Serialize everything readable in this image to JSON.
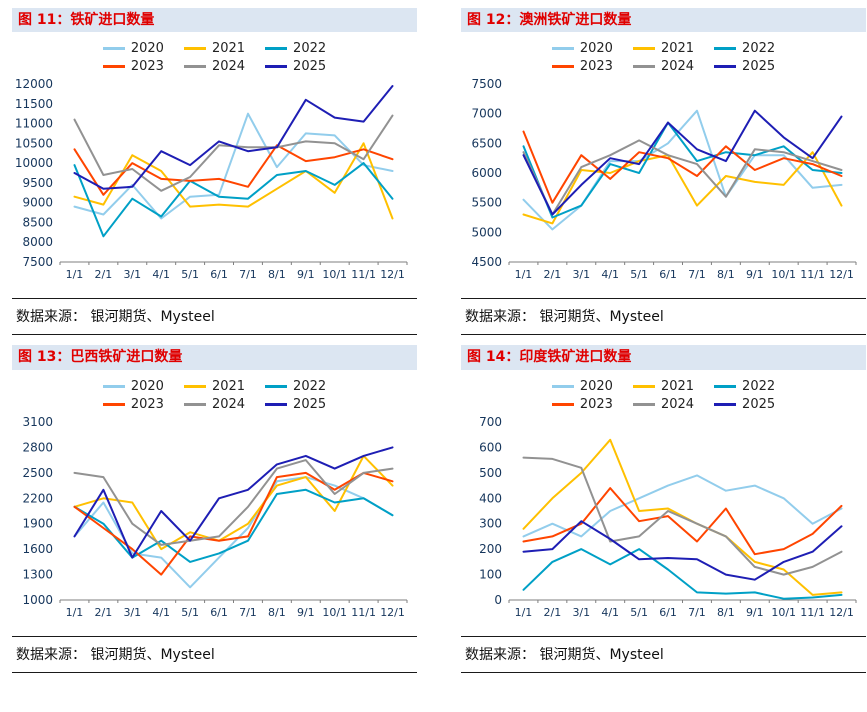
{
  "chart_data": [
    {
      "type": "line",
      "title": "图 11：铁矿进口数量",
      "source": "数据来源： 银河期货、Mysteel",
      "x": [
        "1/1",
        "2/1",
        "3/1",
        "4/1",
        "5/1",
        "6/1",
        "7/1",
        "8/1",
        "9/1",
        "10/1",
        "11/1",
        "12/1"
      ],
      "ylim": [
        7500,
        12000
      ],
      "ytick_step": 500,
      "grid": false,
      "legend_position": "top",
      "series": [
        {
          "name": "2020",
          "color": "#92CDEC",
          "values": [
            8900,
            8700,
            9450,
            8600,
            9150,
            9200,
            11250,
            9900,
            10750,
            10700,
            9950,
            9800
          ]
        },
        {
          "name": "2021",
          "color": "#FFC000",
          "values": [
            9150,
            8950,
            10200,
            9800,
            8900,
            8950,
            8900,
            9350,
            9800,
            9250,
            10500,
            8600
          ]
        },
        {
          "name": "2022",
          "color": "#00A0C6",
          "values": [
            9950,
            8150,
            9100,
            8650,
            9550,
            9150,
            9100,
            9700,
            9800,
            9450,
            10000,
            9100
          ]
        },
        {
          "name": "2023",
          "color": "#FF4500",
          "values": [
            10350,
            9200,
            10000,
            9600,
            9550,
            9600,
            9400,
            10450,
            10050,
            10150,
            10350,
            10100
          ]
        },
        {
          "name": "2024",
          "color": "#929292",
          "values": [
            11100,
            9700,
            9850,
            9300,
            9650,
            10450,
            10400,
            10400,
            10550,
            10500,
            10100,
            11200
          ]
        },
        {
          "name": "2025",
          "color": "#1E1EB4",
          "values": [
            9750,
            9350,
            9400,
            10300,
            9950,
            10550,
            10300,
            10400,
            11600,
            11150,
            11050,
            11950
          ]
        }
      ]
    },
    {
      "type": "line",
      "title": "图 12：澳洲铁矿进口数量",
      "source": "数据来源： 银河期货、Mysteel",
      "x": [
        "1/1",
        "2/1",
        "3/1",
        "4/1",
        "5/1",
        "6/1",
        "7/1",
        "8/1",
        "9/1",
        "10/1",
        "11/1",
        "12/1"
      ],
      "ylim": [
        4500,
        7500
      ],
      "ytick_step": 500,
      "grid": false,
      "legend_position": "top",
      "series": [
        {
          "name": "2020",
          "color": "#92CDEC",
          "values": [
            5550,
            5050,
            5450,
            6200,
            6200,
            6500,
            7050,
            5600,
            6300,
            6300,
            5750,
            5800
          ]
        },
        {
          "name": "2021",
          "color": "#FFC000",
          "values": [
            5300,
            5150,
            6050,
            6000,
            6200,
            6300,
            5450,
            5950,
            5850,
            5800,
            6350,
            5450
          ]
        },
        {
          "name": "2022",
          "color": "#00A0C6",
          "values": [
            6450,
            5250,
            5450,
            6150,
            6000,
            6850,
            6200,
            6350,
            6300,
            6450,
            6050,
            6000
          ]
        },
        {
          "name": "2023",
          "color": "#FF4500",
          "values": [
            6700,
            5500,
            6300,
            5900,
            6350,
            6250,
            5950,
            6450,
            6050,
            6250,
            6150,
            5950
          ]
        },
        {
          "name": "2024",
          "color": "#929292",
          "values": [
            6350,
            5300,
            6100,
            6300,
            6550,
            6300,
            6150,
            5600,
            6400,
            6350,
            6200,
            6050
          ]
        },
        {
          "name": "2025",
          "color": "#1E1EB4",
          "values": [
            6300,
            5300,
            5800,
            6250,
            6150,
            6850,
            6400,
            6200,
            7050,
            6600,
            6250,
            6950
          ]
        }
      ]
    },
    {
      "type": "line",
      "title": "图 13：巴西铁矿进口数量",
      "source": "数据来源： 银河期货、Mysteel",
      "x": [
        "1/1",
        "2/1",
        "3/1",
        "4/1",
        "5/1",
        "6/1",
        "7/1",
        "8/1",
        "9/1",
        "10/1",
        "11/1",
        "12/1"
      ],
      "ylim": [
        1000,
        3100
      ],
      "ytick_step": 300,
      "grid": false,
      "legend_position": "top",
      "series": [
        {
          "name": "2020",
          "color": "#92CDEC",
          "values": [
            1750,
            2150,
            1550,
            1500,
            1150,
            1500,
            1850,
            2400,
            2450,
            2350,
            2200,
            2000
          ]
        },
        {
          "name": "2021",
          "color": "#FFC000",
          "values": [
            2100,
            2200,
            2150,
            1600,
            1800,
            1700,
            1900,
            2350,
            2450,
            2050,
            2700,
            2350
          ]
        },
        {
          "name": "2022",
          "color": "#00A0C6",
          "values": [
            2100,
            1900,
            1500,
            1700,
            1450,
            1550,
            1700,
            2250,
            2300,
            2150,
            2200,
            2000
          ]
        },
        {
          "name": "2023",
          "color": "#FF4500",
          "values": [
            2100,
            1850,
            1600,
            1300,
            1750,
            1700,
            1750,
            2450,
            2500,
            2300,
            2500,
            2400
          ]
        },
        {
          "name": "2024",
          "color": "#929292",
          "values": [
            2500,
            2450,
            1900,
            1650,
            1700,
            1750,
            2100,
            2550,
            2650,
            2250,
            2500,
            2550
          ]
        },
        {
          "name": "2025",
          "color": "#1E1EB4",
          "values": [
            1750,
            2300,
            1500,
            2050,
            1700,
            2200,
            2300,
            2600,
            2700,
            2550,
            2700,
            2800
          ]
        }
      ]
    },
    {
      "type": "line",
      "title": "图 14：印度铁矿进口数量",
      "source": "数据来源： 银河期货、Mysteel",
      "x": [
        "1/1",
        "2/1",
        "3/1",
        "4/1",
        "5/1",
        "6/1",
        "7/1",
        "8/1",
        "9/1",
        "10/1",
        "11/1",
        "12/1"
      ],
      "ylim": [
        0,
        700
      ],
      "ytick_step": 100,
      "grid": false,
      "legend_position": "top",
      "series": [
        {
          "name": "2020",
          "color": "#92CDEC",
          "values": [
            250,
            300,
            250,
            350,
            400,
            450,
            490,
            430,
            450,
            400,
            300,
            360
          ]
        },
        {
          "name": "2021",
          "color": "#FFC000",
          "values": [
            280,
            400,
            500,
            630,
            350,
            360,
            300,
            250,
            150,
            120,
            20,
            30
          ]
        },
        {
          "name": "2022",
          "color": "#00A0C6",
          "values": [
            40,
            150,
            200,
            140,
            200,
            120,
            30,
            25,
            30,
            5,
            10,
            20
          ]
        },
        {
          "name": "2023",
          "color": "#FF4500",
          "values": [
            230,
            250,
            300,
            440,
            310,
            330,
            230,
            360,
            180,
            200,
            260,
            370
          ]
        },
        {
          "name": "2024",
          "color": "#929292",
          "values": [
            560,
            555,
            520,
            230,
            250,
            350,
            300,
            250,
            130,
            100,
            130,
            190
          ]
        },
        {
          "name": "2025",
          "color": "#1E1EB4",
          "values": [
            190,
            200,
            310,
            240,
            160,
            165,
            160,
            100,
            80,
            150,
            190,
            290
          ]
        }
      ]
    }
  ],
  "style": {
    "axis_label_color": "#16365C",
    "axis_line_color": "#7F7F7F",
    "title_color": "#E00000",
    "title_bg": "#DCE6F2"
  }
}
